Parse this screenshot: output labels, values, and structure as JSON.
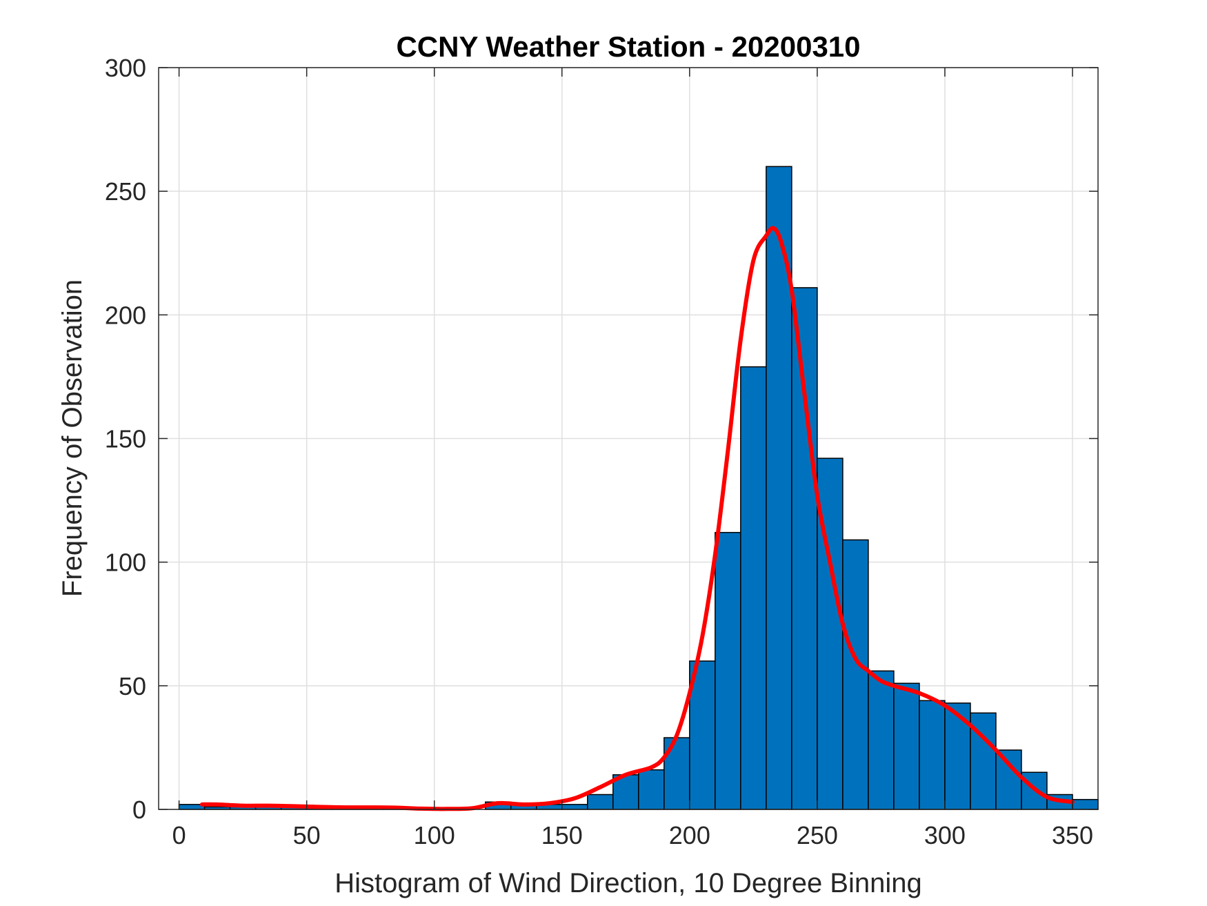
{
  "chart_data": {
    "type": "bar",
    "title": "CCNY Weather Station - 20200310",
    "xlabel": "Histogram of Wind Direction, 10 Degree Binning",
    "ylabel": "Frequency of Observation",
    "xlim": [
      -8,
      360
    ],
    "ylim": [
      0,
      300
    ],
    "xticks": [
      0,
      50,
      100,
      150,
      200,
      250,
      300,
      350
    ],
    "yticks": [
      0,
      50,
      100,
      150,
      200,
      250,
      300
    ],
    "grid": true,
    "bin_width": 10,
    "bar_color": "#0072BD",
    "bar_edge_color": "#000000",
    "bars": [
      {
        "bin_start": 0,
        "value": 2
      },
      {
        "bin_start": 10,
        "value": 1
      },
      {
        "bin_start": 20,
        "value": 1
      },
      {
        "bin_start": 30,
        "value": 1
      },
      {
        "bin_start": 40,
        "value": 1
      },
      {
        "bin_start": 50,
        "value": 1
      },
      {
        "bin_start": 60,
        "value": 1
      },
      {
        "bin_start": 70,
        "value": 1
      },
      {
        "bin_start": 80,
        "value": 1
      },
      {
        "bin_start": 90,
        "value": 0
      },
      {
        "bin_start": 100,
        "value": 0
      },
      {
        "bin_start": 110,
        "value": 0
      },
      {
        "bin_start": 120,
        "value": 3
      },
      {
        "bin_start": 130,
        "value": 2
      },
      {
        "bin_start": 140,
        "value": 2
      },
      {
        "bin_start": 150,
        "value": 2
      },
      {
        "bin_start": 160,
        "value": 6
      },
      {
        "bin_start": 170,
        "value": 14
      },
      {
        "bin_start": 180,
        "value": 16
      },
      {
        "bin_start": 190,
        "value": 29
      },
      {
        "bin_start": 200,
        "value": 60
      },
      {
        "bin_start": 210,
        "value": 112
      },
      {
        "bin_start": 220,
        "value": 179
      },
      {
        "bin_start": 230,
        "value": 260
      },
      {
        "bin_start": 240,
        "value": 211
      },
      {
        "bin_start": 250,
        "value": 142
      },
      {
        "bin_start": 260,
        "value": 109
      },
      {
        "bin_start": 270,
        "value": 56
      },
      {
        "bin_start": 280,
        "value": 51
      },
      {
        "bin_start": 290,
        "value": 44
      },
      {
        "bin_start": 300,
        "value": 43
      },
      {
        "bin_start": 310,
        "value": 39
      },
      {
        "bin_start": 320,
        "value": 24
      },
      {
        "bin_start": 330,
        "value": 15
      },
      {
        "bin_start": 340,
        "value": 6
      },
      {
        "bin_start": 350,
        "value": 4
      }
    ],
    "series": [
      {
        "name": "smoothed fit",
        "type": "line",
        "color": "#FF0000",
        "x": [
          9,
          15,
          25,
          35,
          45,
          55,
          65,
          75,
          85,
          95,
          105,
          115,
          125,
          135,
          145,
          155,
          165,
          175,
          185,
          190,
          195,
          200,
          205,
          210,
          215,
          220,
          225,
          230,
          233,
          236,
          240,
          245,
          250,
          255,
          260,
          265,
          270,
          275,
          280,
          290,
          300,
          310,
          320,
          330,
          340,
          350
        ],
        "y": [
          2,
          2,
          1.5,
          1.5,
          1.3,
          1,
          0.8,
          0.8,
          0.7,
          0.3,
          0.2,
          0.5,
          2.5,
          2,
          2.5,
          4.5,
          9,
          14,
          17,
          21,
          30,
          47,
          70,
          103,
          145,
          190,
          222,
          232,
          235,
          229,
          210,
          168,
          127,
          100,
          75,
          61,
          56,
          52,
          50,
          47,
          42,
          34,
          24,
          13,
          5,
          3
        ]
      }
    ]
  }
}
